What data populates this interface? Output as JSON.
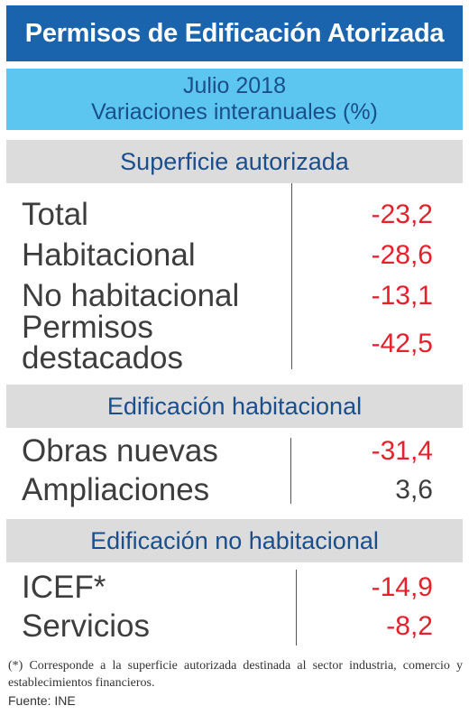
{
  "title": "Permisos de Edificación Atorizada",
  "subtitle": {
    "line1": "Julio 2018",
    "line2": "Variaciones interanuales (%)"
  },
  "sections": [
    {
      "header": "Superficie autorizada",
      "rows": [
        {
          "label": "Total",
          "value": "-23,2"
        },
        {
          "label": "Habitacional",
          "value": "-28,6"
        },
        {
          "label": "No habitacional",
          "value": "-13,1"
        },
        {
          "label_line1": "Permisos",
          "label_line2": "destacados",
          "value": "-42,5"
        }
      ]
    },
    {
      "header": "Edificación habitacional",
      "rows": [
        {
          "label": "Obras nuevas",
          "value": "-31,4"
        },
        {
          "label": "Ampliaciones",
          "value": "3,6"
        }
      ]
    },
    {
      "header": "Edificación no habitacional",
      "rows": [
        {
          "label": "ICEF*",
          "value": "-14,9"
        },
        {
          "label": "Servicios",
          "value": "-8,2"
        }
      ]
    }
  ],
  "footnote": "(*) Corresponde a la superficie autorizada destinada al sector industria, comercio y establecimientos financieros.",
  "source": "Fuente: INE",
  "colors": {
    "title_bg": "#1a63ad",
    "subtitle_bg": "#5cc5f0",
    "section_bg": "#dcdcdc",
    "header_text": "#1a4f8c",
    "negative": "#e3222c"
  }
}
